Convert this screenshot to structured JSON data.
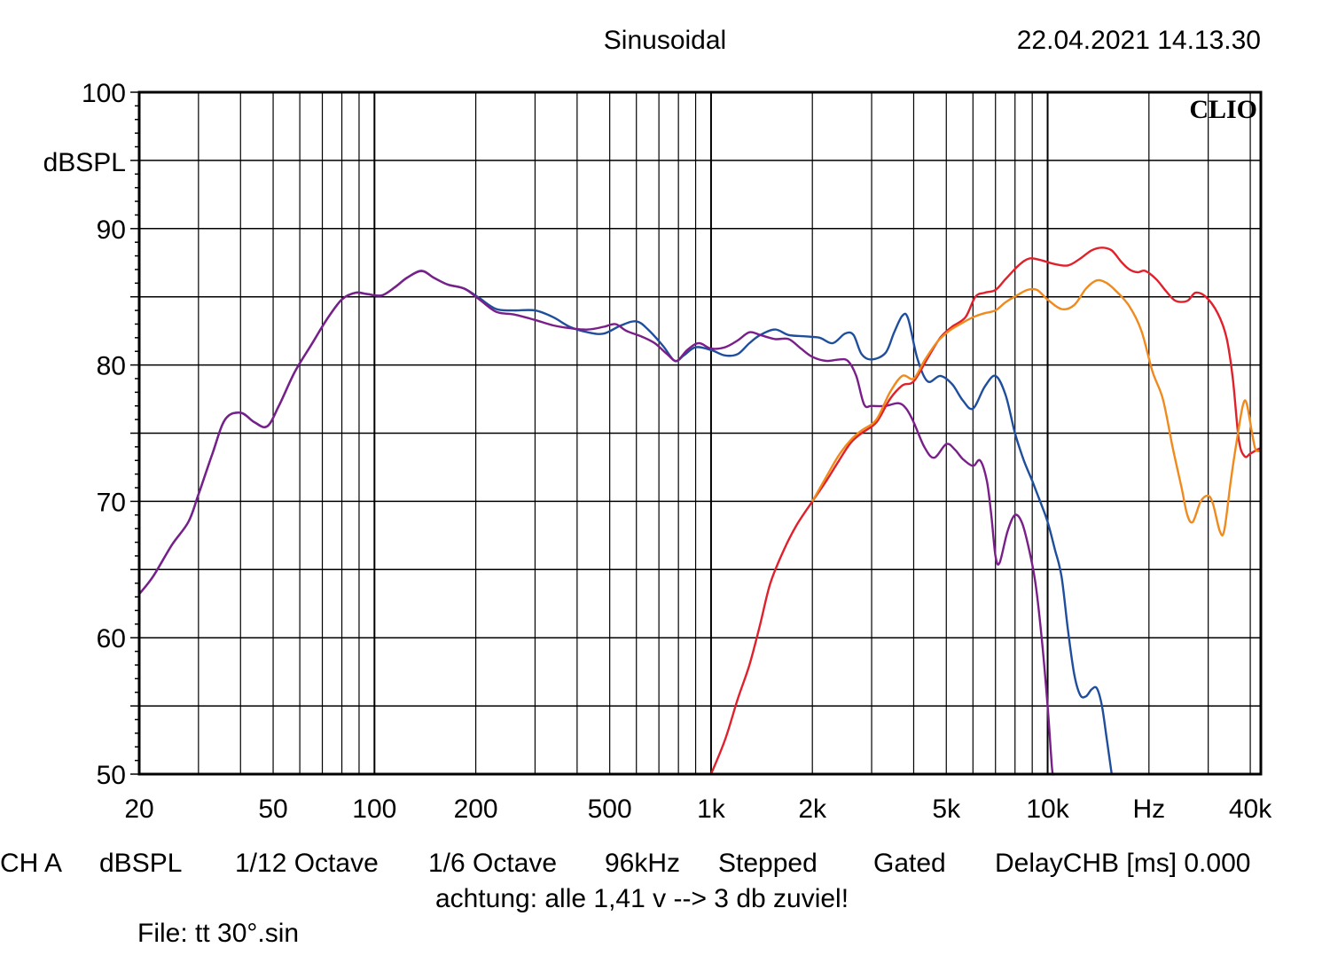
{
  "header": {
    "title": "Sinusoidal",
    "timestamp": "22.04.2021 14.13.30",
    "brand": "CLIO"
  },
  "footer": {
    "settings": [
      "CH A",
      "dBSPL",
      "1/12 Octave",
      "1/6 Octave",
      "96kHz",
      "Stepped",
      "Gated",
      "DelayCHB [ms] 0.000"
    ],
    "note": "achtung: alle 1,41 v --> 3 db zuviel!",
    "file": "File: tt 30°.sin"
  },
  "colors": {
    "blue": "#1f4e9c",
    "purple": "#7a1f8a",
    "red": "#e0212b",
    "orange": "#f08a1c",
    "grid": "#000000"
  },
  "chart_data": {
    "type": "line",
    "title": "Sinusoidal",
    "xlabel": "Hz",
    "ylabel": "dBSPL",
    "xscale": "log",
    "xlim": [
      20,
      43000
    ],
    "ylim": [
      50,
      100
    ],
    "grid": true,
    "x_ticks": [
      {
        "value": 20,
        "label": "20"
      },
      {
        "value": 50,
        "label": "50"
      },
      {
        "value": 100,
        "label": "100"
      },
      {
        "value": 200,
        "label": "200"
      },
      {
        "value": 500,
        "label": "500"
      },
      {
        "value": 1000,
        "label": "1k"
      },
      {
        "value": 2000,
        "label": "2k"
      },
      {
        "value": 5000,
        "label": "5k"
      },
      {
        "value": 10000,
        "label": "10k"
      },
      {
        "value": 20000,
        "label": "Hz"
      },
      {
        "value": 40000,
        "label": "40k"
      }
    ],
    "y_ticks": [
      {
        "value": 100,
        "label": "100"
      },
      {
        "value": 90,
        "label": "90"
      },
      {
        "value": 80,
        "label": "80"
      },
      {
        "value": 70,
        "label": "70"
      },
      {
        "value": 60,
        "label": "60"
      },
      {
        "value": 50,
        "label": "50"
      }
    ],
    "series": [
      {
        "name": "blue",
        "color": "#1f4e9c",
        "points": [
          [
            20,
            63.2
          ],
          [
            22,
            64.5
          ],
          [
            25,
            66.8
          ],
          [
            28,
            68.5
          ],
          [
            30,
            70.5
          ],
          [
            33,
            73.5
          ],
          [
            36,
            76
          ],
          [
            40,
            76.5
          ],
          [
            44,
            75.8
          ],
          [
            48,
            75.5
          ],
          [
            52,
            77
          ],
          [
            58,
            79.5
          ],
          [
            65,
            81.5
          ],
          [
            72,
            83.3
          ],
          [
            80,
            84.8
          ],
          [
            88,
            85.3
          ],
          [
            95,
            85.2
          ],
          [
            105,
            85.1
          ],
          [
            115,
            85.7
          ],
          [
            125,
            86.4
          ],
          [
            138,
            86.9
          ],
          [
            150,
            86.4
          ],
          [
            165,
            85.9
          ],
          [
            185,
            85.6
          ],
          [
            205,
            84.9
          ],
          [
            230,
            84.1
          ],
          [
            260,
            84
          ],
          [
            300,
            84
          ],
          [
            340,
            83.5
          ],
          [
            380,
            82.8
          ],
          [
            430,
            82.4
          ],
          [
            480,
            82.3
          ],
          [
            540,
            82.9
          ],
          [
            600,
            83.2
          ],
          [
            650,
            82.6
          ],
          [
            720,
            81.4
          ],
          [
            780,
            80.3
          ],
          [
            830,
            80.7
          ],
          [
            900,
            81.3
          ],
          [
            1000,
            81.1
          ],
          [
            1100,
            80.7
          ],
          [
            1200,
            80.8
          ],
          [
            1300,
            81.6
          ],
          [
            1400,
            82.2
          ],
          [
            1550,
            82.6
          ],
          [
            1700,
            82.2
          ],
          [
            1900,
            82.1
          ],
          [
            2100,
            82
          ],
          [
            2300,
            81.6
          ],
          [
            2500,
            82.3
          ],
          [
            2650,
            82.2
          ],
          [
            2800,
            80.8
          ],
          [
            3000,
            80.4
          ],
          [
            3300,
            80.9
          ],
          [
            3500,
            82.4
          ],
          [
            3700,
            83.6
          ],
          [
            3850,
            83.4
          ],
          [
            4100,
            80.5
          ],
          [
            4400,
            78.8
          ],
          [
            4800,
            79.2
          ],
          [
            5200,
            78.6
          ],
          [
            5600,
            77.4
          ],
          [
            6000,
            76.8
          ],
          [
            6500,
            78.4
          ],
          [
            7000,
            79.2
          ],
          [
            7500,
            77.8
          ],
          [
            8000,
            75
          ],
          [
            8500,
            73
          ],
          [
            9000,
            71.5
          ],
          [
            9500,
            70
          ],
          [
            10000,
            68.5
          ],
          [
            10500,
            66.5
          ],
          [
            11000,
            64.5
          ],
          [
            11500,
            60.5
          ],
          [
            12000,
            57.3
          ],
          [
            12500,
            55.8
          ],
          [
            13000,
            55.7
          ],
          [
            13500,
            56.2
          ],
          [
            14000,
            56.3
          ],
          [
            14500,
            55
          ],
          [
            15000,
            52.5
          ],
          [
            15500,
            50
          ]
        ]
      },
      {
        "name": "purple",
        "color": "#7a1f8a",
        "points": [
          [
            20,
            63.2
          ],
          [
            22,
            64.5
          ],
          [
            25,
            66.8
          ],
          [
            28,
            68.5
          ],
          [
            30,
            70.5
          ],
          [
            33,
            73.5
          ],
          [
            36,
            76
          ],
          [
            40,
            76.5
          ],
          [
            44,
            75.8
          ],
          [
            48,
            75.5
          ],
          [
            52,
            77
          ],
          [
            58,
            79.5
          ],
          [
            65,
            81.5
          ],
          [
            72,
            83.3
          ],
          [
            80,
            84.8
          ],
          [
            88,
            85.3
          ],
          [
            95,
            85.2
          ],
          [
            105,
            85.1
          ],
          [
            115,
            85.7
          ],
          [
            125,
            86.4
          ],
          [
            138,
            86.9
          ],
          [
            150,
            86.4
          ],
          [
            165,
            85.9
          ],
          [
            185,
            85.6
          ],
          [
            205,
            84.8
          ],
          [
            230,
            83.9
          ],
          [
            260,
            83.7
          ],
          [
            300,
            83.3
          ],
          [
            340,
            82.9
          ],
          [
            380,
            82.7
          ],
          [
            430,
            82.6
          ],
          [
            480,
            82.8
          ],
          [
            520,
            83
          ],
          [
            560,
            82.5
          ],
          [
            620,
            82.1
          ],
          [
            680,
            81.6
          ],
          [
            740,
            80.8
          ],
          [
            790,
            80.3
          ],
          [
            850,
            81.1
          ],
          [
            920,
            81.6
          ],
          [
            1000,
            81.2
          ],
          [
            1100,
            81.3
          ],
          [
            1200,
            81.8
          ],
          [
            1300,
            82.4
          ],
          [
            1400,
            82.2
          ],
          [
            1550,
            81.9
          ],
          [
            1700,
            81.9
          ],
          [
            1850,
            81.2
          ],
          [
            2000,
            80.6
          ],
          [
            2200,
            80.3
          ],
          [
            2400,
            80.4
          ],
          [
            2550,
            80.3
          ],
          [
            2700,
            79.2
          ],
          [
            2850,
            77.1
          ],
          [
            3000,
            77
          ],
          [
            3300,
            77
          ],
          [
            3600,
            77.2
          ],
          [
            3800,
            76.8
          ],
          [
            4000,
            75.8
          ],
          [
            4300,
            74
          ],
          [
            4600,
            73.2
          ],
          [
            5000,
            74.2
          ],
          [
            5300,
            73.8
          ],
          [
            5600,
            73.1
          ],
          [
            6000,
            72.6
          ],
          [
            6300,
            73
          ],
          [
            6600,
            71.5
          ],
          [
            6800,
            69
          ],
          [
            7000,
            66
          ],
          [
            7200,
            65.5
          ],
          [
            7600,
            67.8
          ],
          [
            8000,
            69
          ],
          [
            8400,
            68.4
          ],
          [
            8800,
            66.5
          ],
          [
            9200,
            64
          ],
          [
            9600,
            60
          ],
          [
            10000,
            55
          ],
          [
            10300,
            50.5
          ],
          [
            10400,
            50
          ]
        ]
      },
      {
        "name": "red",
        "color": "#e0212b",
        "points": [
          [
            1000,
            50
          ],
          [
            1100,
            52.5
          ],
          [
            1200,
            55.5
          ],
          [
            1300,
            58
          ],
          [
            1400,
            61
          ],
          [
            1500,
            64
          ],
          [
            1650,
            66.5
          ],
          [
            1800,
            68.3
          ],
          [
            2000,
            70
          ],
          [
            2200,
            71.5
          ],
          [
            2400,
            73
          ],
          [
            2600,
            74.3
          ],
          [
            2800,
            75
          ],
          [
            3100,
            75.8
          ],
          [
            3400,
            77.5
          ],
          [
            3700,
            78.5
          ],
          [
            4000,
            78.8
          ],
          [
            4400,
            80.5
          ],
          [
            4800,
            82
          ],
          [
            5200,
            82.8
          ],
          [
            5700,
            83.5
          ],
          [
            6100,
            85
          ],
          [
            6500,
            85.3
          ],
          [
            7000,
            85.5
          ],
          [
            7500,
            86.3
          ],
          [
            8200,
            87.3
          ],
          [
            8800,
            87.8
          ],
          [
            9500,
            87.7
          ],
          [
            10500,
            87.4
          ],
          [
            11500,
            87.3
          ],
          [
            12500,
            87.8
          ],
          [
            13500,
            88.4
          ],
          [
            14500,
            88.6
          ],
          [
            15500,
            88.4
          ],
          [
            16500,
            87.6
          ],
          [
            17500,
            87
          ],
          [
            18500,
            86.8
          ],
          [
            19500,
            86.9
          ],
          [
            21000,
            86.3
          ],
          [
            22500,
            85.4
          ],
          [
            24000,
            84.7
          ],
          [
            26000,
            84.7
          ],
          [
            27500,
            85.3
          ],
          [
            29500,
            85
          ],
          [
            32000,
            83.8
          ],
          [
            34000,
            82
          ],
          [
            35500,
            79
          ],
          [
            37000,
            74.5
          ],
          [
            38500,
            73.3
          ],
          [
            40000,
            73.5
          ],
          [
            42000,
            73.8
          ],
          [
            43000,
            73.9
          ]
        ]
      },
      {
        "name": "orange",
        "color": "#f08a1c",
        "points": [
          [
            2000,
            70
          ],
          [
            2200,
            71.8
          ],
          [
            2400,
            73.4
          ],
          [
            2600,
            74.5
          ],
          [
            2800,
            75.2
          ],
          [
            3100,
            76
          ],
          [
            3400,
            78
          ],
          [
            3700,
            79.2
          ],
          [
            4000,
            79
          ],
          [
            4300,
            80.3
          ],
          [
            4700,
            81.7
          ],
          [
            5100,
            82.5
          ],
          [
            5500,
            83
          ],
          [
            6000,
            83.5
          ],
          [
            6500,
            83.8
          ],
          [
            7000,
            84
          ],
          [
            7500,
            84.6
          ],
          [
            8100,
            85.1
          ],
          [
            8700,
            85.5
          ],
          [
            9300,
            85.5
          ],
          [
            10000,
            84.8
          ],
          [
            11000,
            84.1
          ],
          [
            12000,
            84.4
          ],
          [
            13000,
            85.6
          ],
          [
            14000,
            86.2
          ],
          [
            15000,
            86
          ],
          [
            16000,
            85.4
          ],
          [
            17500,
            84.3
          ],
          [
            19000,
            82.5
          ],
          [
            20500,
            79.5
          ],
          [
            22000,
            77.5
          ],
          [
            23500,
            74
          ],
          [
            25000,
            71
          ],
          [
            26000,
            69
          ],
          [
            27000,
            68.5
          ],
          [
            28500,
            70
          ],
          [
            30000,
            70.4
          ],
          [
            31000,
            69.8
          ],
          [
            32500,
            67.8
          ],
          [
            33500,
            67.9
          ],
          [
            35000,
            71.5
          ],
          [
            36500,
            74.5
          ],
          [
            38000,
            77
          ],
          [
            39000,
            77.2
          ],
          [
            40500,
            75
          ],
          [
            41500,
            73.8
          ],
          [
            43000,
            73.7
          ]
        ]
      }
    ]
  }
}
